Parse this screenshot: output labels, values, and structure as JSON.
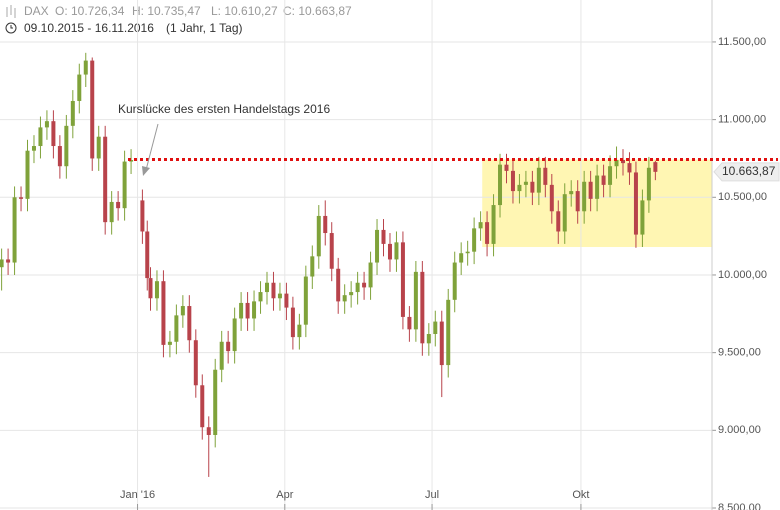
{
  "header": {
    "symbol": "DAX",
    "open": "O: 10.726,34",
    "high": "H: 10.735,47",
    "low": "L: 10.610,27",
    "close": "C: 10.663,87",
    "period": "09.10.2015 - 16.11.2016",
    "span": "(1 Jahr, 1 Tag)"
  },
  "chart_data": {
    "type": "candlestick",
    "x": [
      "2015-10-09",
      "2015-10-13",
      "2015-10-17",
      "2015-10-21",
      "2015-10-25",
      "2015-10-29",
      "2015-11-02",
      "2015-11-06",
      "2015-11-10",
      "2015-11-14",
      "2015-11-18",
      "2015-11-22",
      "2015-11-26",
      "2015-11-30",
      "2015-12-04",
      "2015-12-08",
      "2015-12-12",
      "2015-12-16",
      "2015-12-20",
      "2015-12-24",
      "2015-12-28",
      "2016-01-04",
      "2016-01-07",
      "2016-01-09",
      "2016-01-13",
      "2016-01-17",
      "2016-01-21",
      "2016-01-25",
      "2016-01-29",
      "2016-02-02",
      "2016-02-06",
      "2016-02-10",
      "2016-02-14",
      "2016-02-18",
      "2016-02-22",
      "2016-02-26",
      "2016-03-01",
      "2016-03-05",
      "2016-03-09",
      "2016-03-13",
      "2016-03-17",
      "2016-03-21",
      "2016-03-25",
      "2016-03-29",
      "2016-04-02",
      "2016-04-06",
      "2016-04-10",
      "2016-04-14",
      "2016-04-18",
      "2016-04-22",
      "2016-04-26",
      "2016-04-30",
      "2016-05-04",
      "2016-05-08",
      "2016-05-12",
      "2016-05-16",
      "2016-05-20",
      "2016-05-24",
      "2016-05-28",
      "2016-06-01",
      "2016-06-05",
      "2016-06-09",
      "2016-06-13",
      "2016-06-17",
      "2016-06-21",
      "2016-06-25",
      "2016-06-29",
      "2016-07-03",
      "2016-07-07",
      "2016-07-11",
      "2016-07-15",
      "2016-07-19",
      "2016-07-23",
      "2016-07-27",
      "2016-07-31",
      "2016-08-04",
      "2016-08-08",
      "2016-08-12",
      "2016-08-16",
      "2016-08-20",
      "2016-08-24",
      "2016-08-28",
      "2016-09-01",
      "2016-09-05",
      "2016-09-09",
      "2016-09-13",
      "2016-09-17",
      "2016-09-21",
      "2016-09-25",
      "2016-09-29",
      "2016-10-03",
      "2016-10-07",
      "2016-10-11",
      "2016-10-15",
      "2016-10-19",
      "2016-10-23",
      "2016-10-27",
      "2016-10-31",
      "2016-11-04",
      "2016-11-08",
      "2016-11-12",
      "2016-11-16"
    ],
    "open": [
      10050,
      10100,
      10080,
      10500,
      10490,
      10800,
      10830,
      10950,
      10990,
      10830,
      10700,
      10960,
      11120,
      11290,
      11380,
      10750,
      10890,
      10340,
      10470,
      10430,
      10730,
      10480,
      10280,
      9980,
      9850,
      9960,
      9550,
      9570,
      9740,
      9800,
      9580,
      9290,
      9020,
      8970,
      9390,
      9570,
      9510,
      9720,
      9820,
      9720,
      9830,
      9890,
      9950,
      9850,
      9880,
      9790,
      9600,
      9680,
      9990,
      10120,
      10380,
      10270,
      10040,
      9830,
      9870,
      9890,
      9950,
      9920,
      10080,
      10290,
      10200,
      10100,
      10210,
      9730,
      9650,
      10020,
      9560,
      9620,
      9700,
      9420,
      9840,
      10080,
      10140,
      10150,
      10300,
      10340,
      10200,
      10450,
      10710,
      10670,
      10540,
      10580,
      10600,
      10530,
      10690,
      10580,
      10410,
      10280,
      10520,
      10540,
      10410,
      10600,
      10490,
      10640,
      10580,
      10700,
      10740,
      10720,
      10660,
      10260,
      10480,
      10726.34
    ],
    "high": [
      10170,
      10170,
      10570,
      10570,
      10870,
      10900,
      11020,
      11060,
      11060,
      10900,
      11030,
      11190,
      11360,
      11430,
      11400,
      10960,
      10960,
      10540,
      10540,
      10800,
      10810,
      10550,
      10350,
      10050,
      10030,
      10030,
      9640,
      9810,
      9870,
      9870,
      9650,
      9360,
      9090,
      9460,
      9640,
      9640,
      9790,
      9890,
      9890,
      9900,
      9960,
      10020,
      10020,
      9950,
      9950,
      9860,
      9750,
      10060,
      10190,
      10450,
      10480,
      10340,
      10110,
      9940,
      9960,
      10020,
      10020,
      10150,
      10360,
      10360,
      10270,
      10280,
      10280,
      9800,
      10090,
      10090,
      9690,
      9770,
      9770,
      9910,
      10150,
      10210,
      10220,
      10370,
      10410,
      10410,
      10520,
      10780,
      10780,
      10740,
      10650,
      10670,
      10670,
      10760,
      10760,
      10650,
      10480,
      10590,
      10610,
      10610,
      10670,
      10670,
      10710,
      10710,
      10770,
      10827,
      10810,
      10790,
      10730,
      10550,
      10760,
      10735.47
    ],
    "low": [
      9900,
      10000,
      10000,
      10410,
      10410,
      10720,
      10750,
      10870,
      10750,
      10620,
      10620,
      10880,
      11040,
      11210,
      10670,
      10670,
      10260,
      10260,
      10350,
      10350,
      10650,
      10200,
      9900,
      9770,
      9770,
      9470,
      9470,
      9490,
      9660,
      9500,
      9210,
      8940,
      8700,
      8890,
      9310,
      9430,
      9430,
      9640,
      9640,
      9640,
      9750,
      9810,
      9770,
      9770,
      9710,
      9520,
      9520,
      9600,
      9910,
      10040,
      10190,
      9960,
      9750,
      9750,
      9790,
      9810,
      9840,
      9840,
      10000,
      10120,
      10020,
      10020,
      9650,
      9570,
      9570,
      9480,
      9480,
      9540,
      9214,
      9340,
      9760,
      10000,
      10060,
      10070,
      10220,
      10120,
      10120,
      10370,
      10590,
      10460,
      10460,
      10500,
      10450,
      10450,
      10500,
      10330,
      10200,
      10200,
      10440,
      10330,
      10330,
      10410,
      10410,
      10500,
      10500,
      10620,
      10640,
      10580,
      10175,
      10180,
      10400,
      10610.27
    ],
    "close": [
      10100,
      10080,
      10500,
      10490,
      10800,
      10830,
      10950,
      10990,
      10830,
      10700,
      10960,
      11120,
      11290,
      11380,
      10750,
      10890,
      10340,
      10470,
      10430,
      10730,
      10740,
      10280,
      9980,
      9850,
      9960,
      9550,
      9570,
      9740,
      9800,
      9580,
      9290,
      9020,
      8970,
      9390,
      9570,
      9510,
      9720,
      9820,
      9720,
      9830,
      9890,
      9950,
      9850,
      9880,
      9790,
      9600,
      9680,
      9990,
      10120,
      10380,
      10270,
      10040,
      9830,
      9870,
      9890,
      9950,
      9920,
      10080,
      10290,
      10200,
      10100,
      10210,
      9730,
      9650,
      10020,
      9560,
      9620,
      9700,
      9420,
      9840,
      10080,
      10140,
      10150,
      10300,
      10340,
      10200,
      10450,
      10710,
      10670,
      10540,
      10580,
      10600,
      10530,
      10690,
      10580,
      10410,
      10280,
      10520,
      10540,
      10410,
      10600,
      10490,
      10640,
      10580,
      10700,
      10740,
      10720,
      10660,
      10260,
      10480,
      10690,
      10663.87
    ],
    "up_color": "#7fa23a",
    "down_color": "#b8434b",
    "xlim": [
      "2015-10-08",
      "2016-12-21"
    ],
    "xticks": [
      {
        "value": "2016-01",
        "label": "Jan '16"
      },
      {
        "value": "2016-04",
        "label": "Apr"
      },
      {
        "value": "2016-07",
        "label": "Jul"
      },
      {
        "value": "2016-10",
        "label": "Okt"
      }
    ],
    "ylim": [
      8500,
      11770
    ],
    "yticks": [
      {
        "value": 8500,
        "label": "8.500,00"
      },
      {
        "value": 9000,
        "label": "9.000,00"
      },
      {
        "value": 9500,
        "label": "9.500,00"
      },
      {
        "value": 10000,
        "label": "10.000,00"
      },
      {
        "value": 10500,
        "label": "10.500,00"
      },
      {
        "value": 11000,
        "label": "11.000,00"
      },
      {
        "value": 11500,
        "label": "11.500,00"
      }
    ],
    "grid": true,
    "reference_line": {
      "value": 10743,
      "color": "#e01010"
    },
    "range_box": {
      "x": [
        "2016-08-01",
        "2016-12-21"
      ],
      "y": [
        10180,
        10743
      ],
      "color": "#fff6b3"
    },
    "last_price": {
      "value": 10663.87,
      "label": "10.663,87"
    },
    "annotation": {
      "text": "Kurslücke des ersten Handelstags 2016"
    }
  }
}
